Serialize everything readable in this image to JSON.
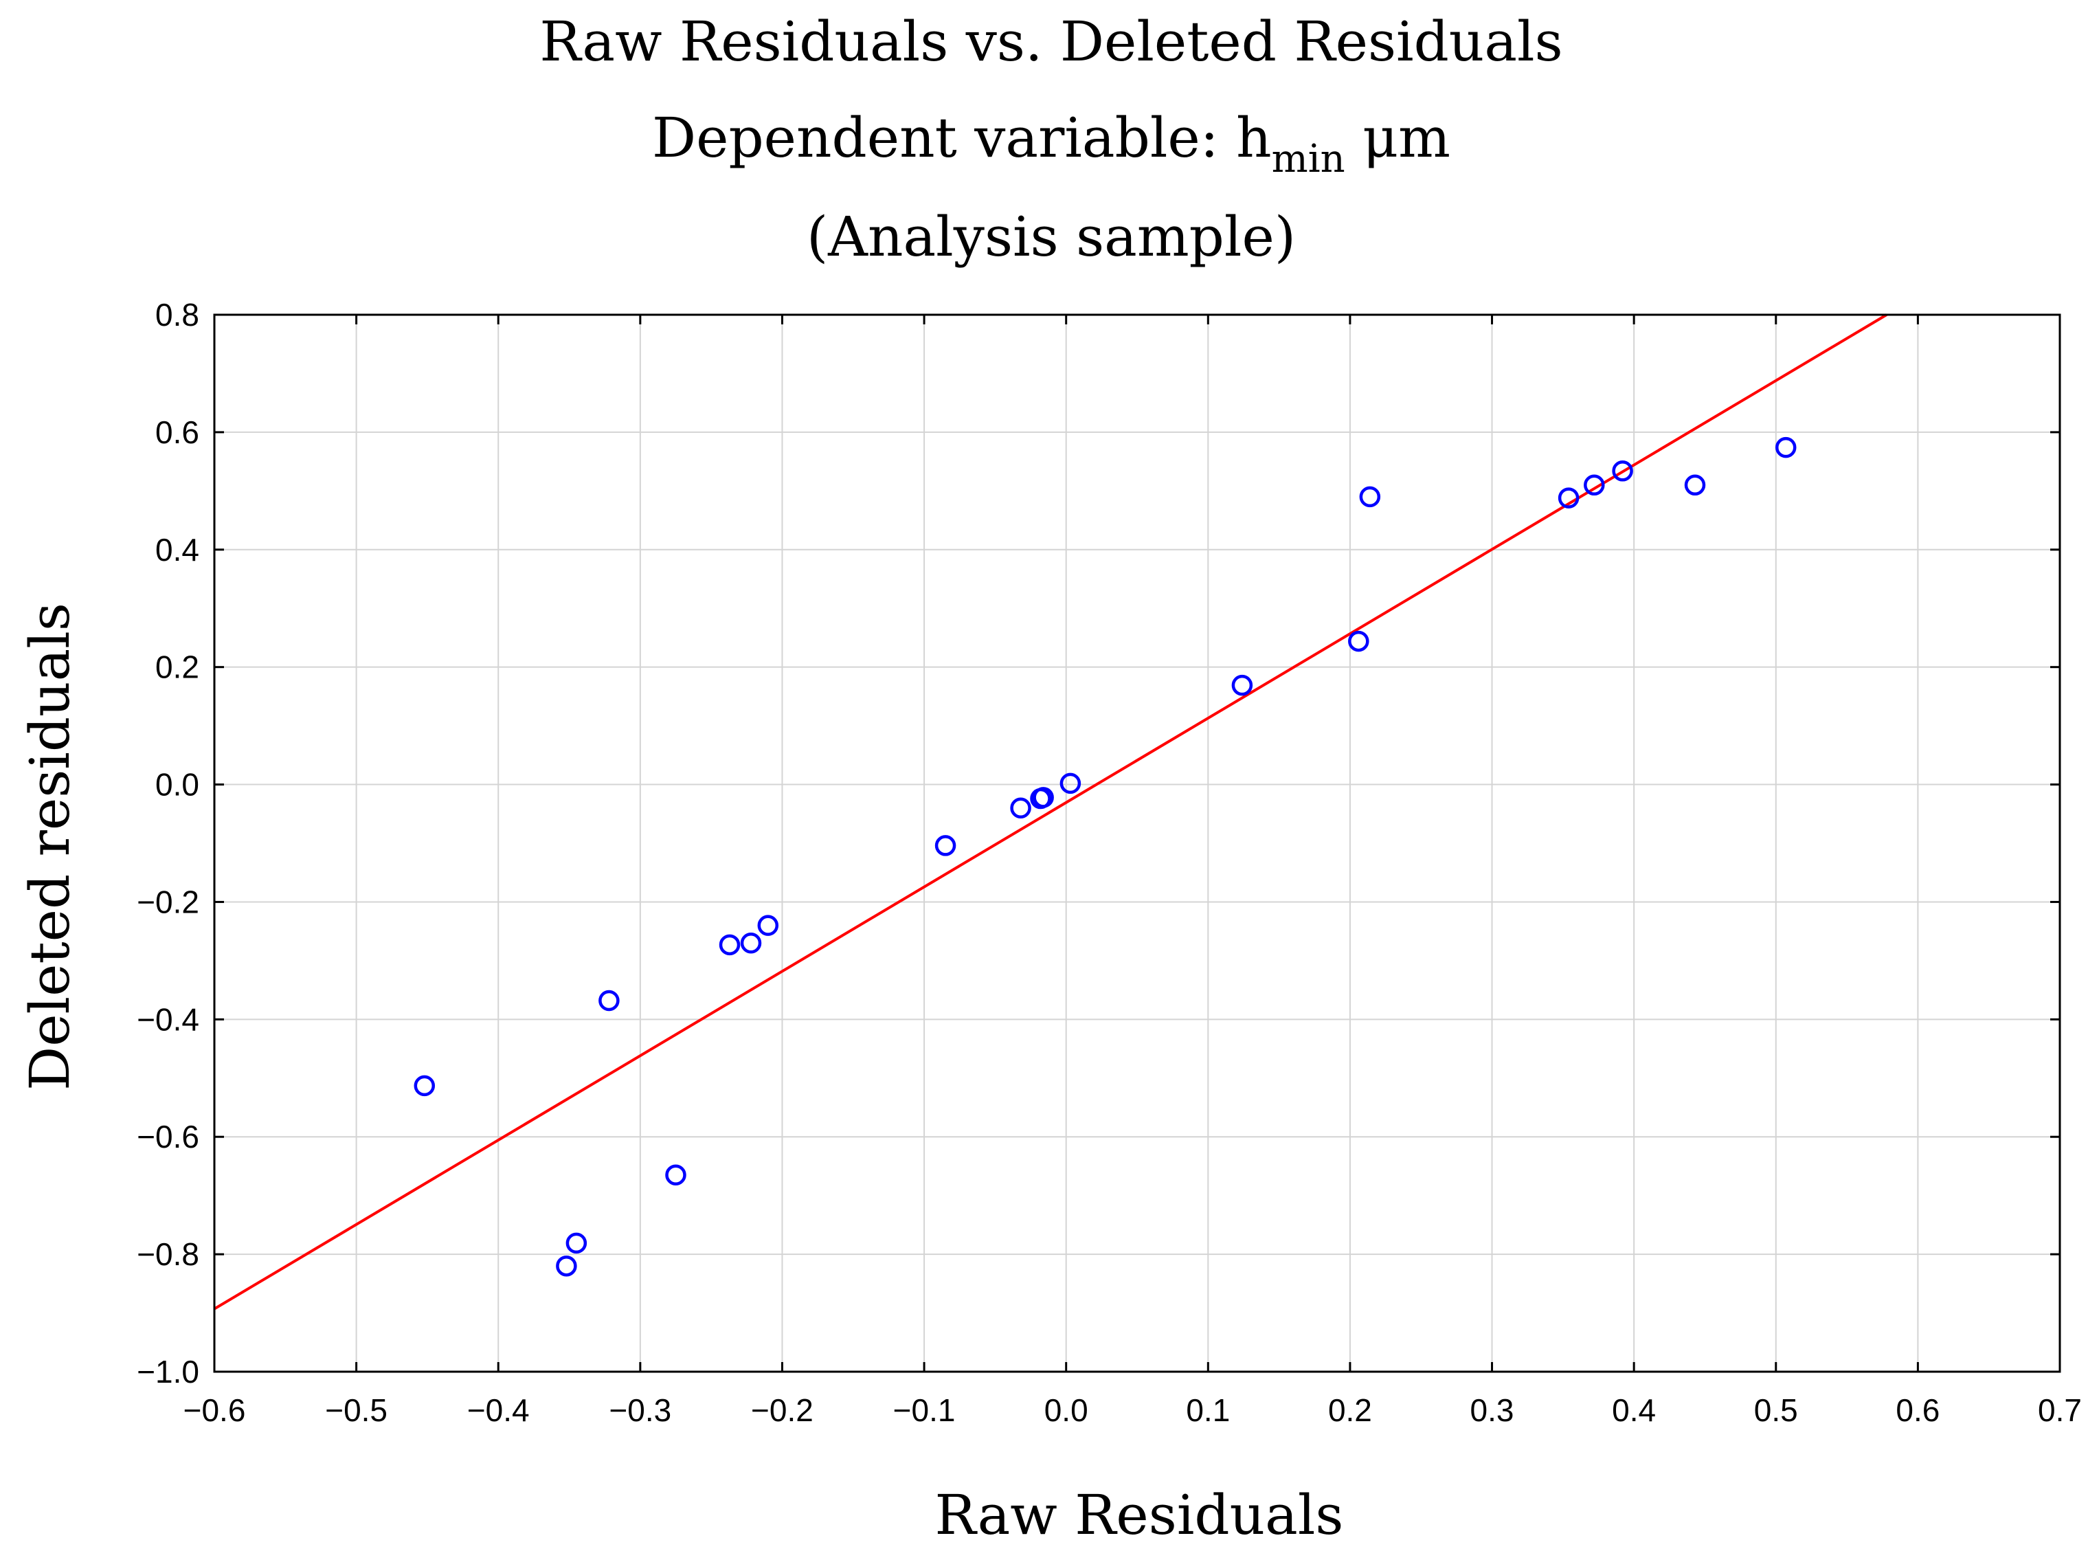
{
  "chart_data": {
    "type": "scatter",
    "title": {
      "line1": "Raw Residuals vs. Deleted Residuals",
      "line2_prefix": "Dependent variable: h",
      "line2_sub": "min",
      "line2_suffix": " μm",
      "line3": "(Analysis sample)"
    },
    "xlabel": "Raw Residuals",
    "ylabel": "Deleted residuals",
    "xlim": [
      -0.6,
      0.7
    ],
    "ylim": [
      -1.0,
      0.8
    ],
    "xticks": [
      -0.6,
      -0.5,
      -0.4,
      -0.3,
      -0.2,
      -0.1,
      0.0,
      0.1,
      0.2,
      0.3,
      0.4,
      0.5,
      0.6,
      0.7
    ],
    "xtick_labels": [
      "−0.6",
      "−0.5",
      "−0.4",
      "−0.3",
      "−0.2",
      "−0.1",
      "0.0",
      "0.1",
      "0.2",
      "0.3",
      "0.4",
      "0.5",
      "0.6",
      "0.7"
    ],
    "yticks": [
      0.8,
      0.6,
      0.4,
      0.2,
      0.0,
      -0.2,
      -0.4,
      -0.6,
      -0.8,
      -1.0
    ],
    "ytick_labels": [
      "0.8",
      "0.6",
      "0.4",
      "0.2",
      "0.0",
      "−0.2",
      "−0.4",
      "−0.6",
      "−0.8",
      "−1.0"
    ],
    "grid": true,
    "series": [
      {
        "name": "residuals",
        "marker": "circle-open",
        "color": "#0000ff",
        "x": [
          -0.452,
          -0.352,
          -0.345,
          -0.322,
          -0.275,
          -0.237,
          -0.222,
          -0.21,
          -0.085,
          -0.032,
          -0.018,
          -0.016,
          0.003,
          0.124,
          0.206,
          0.214,
          0.354,
          0.372,
          0.392,
          0.443,
          0.507
        ],
        "y": [
          -0.513,
          -0.82,
          -0.781,
          -0.368,
          -0.665,
          -0.273,
          -0.27,
          -0.24,
          -0.104,
          -0.04,
          -0.024,
          -0.022,
          0.002,
          0.169,
          0.244,
          0.49,
          0.488,
          0.51,
          0.534,
          0.51,
          0.574
        ]
      }
    ],
    "fit_line": {
      "name": "linear fit",
      "color": "#ff0000",
      "x": [
        -0.6,
        0.578
      ],
      "y": [
        -0.893,
        0.8
      ]
    }
  }
}
